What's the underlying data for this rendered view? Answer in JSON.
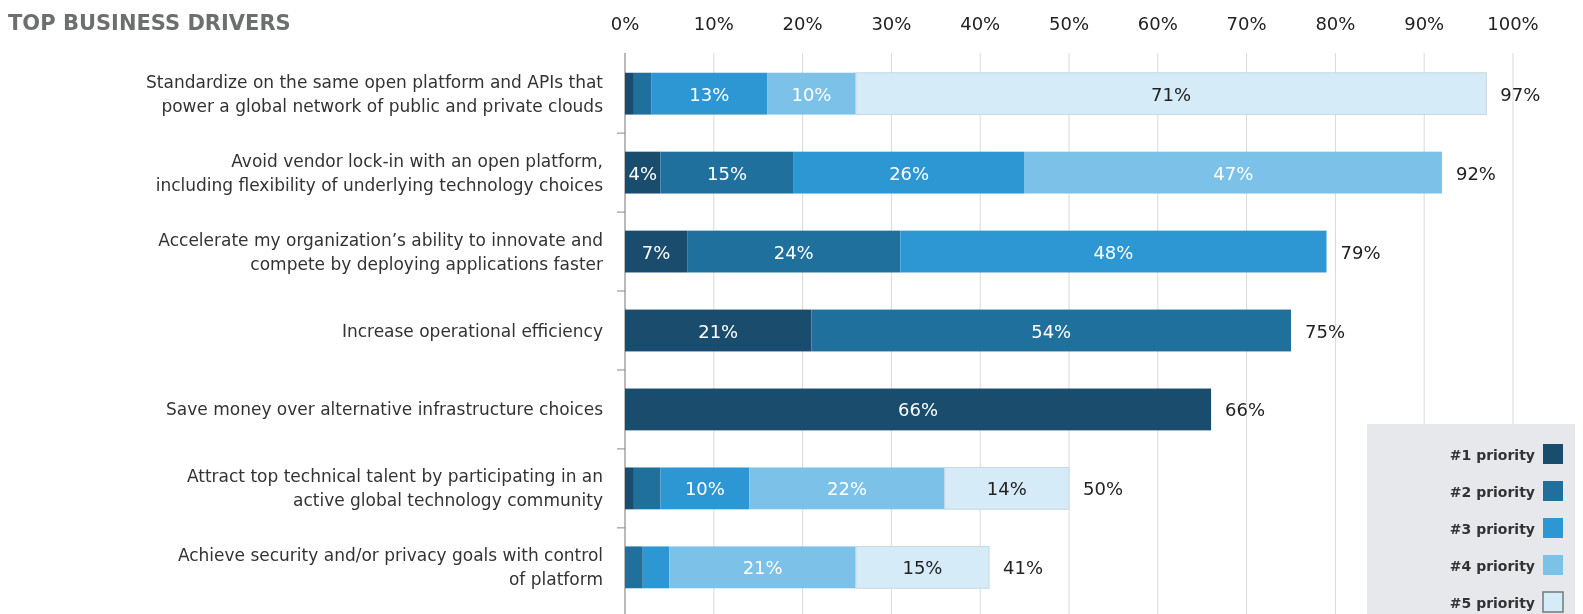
{
  "chart_data": {
    "type": "bar",
    "orientation": "horizontal",
    "stacked": true,
    "title": "TOP BUSINESS DRIVERS",
    "categories": [
      "Standardize on the same open platform and APIs that\npower a global network of public and private clouds",
      "Avoid vendor lock-in with an open platform,\nincluding flexibility of underlying technology choices",
      "Accelerate my organization’s ability to innovate and\ncompete by deploying applications faster",
      "Increase operational efficiency",
      "Save money over alternative infrastructure choices",
      "Attract top technical talent by participating in an\nactive global technology community",
      "Achieve security and/or privacy goals with control\nof platform"
    ],
    "series": [
      {
        "name": "#1 priority",
        "color": "#1a4d6d",
        "values": [
          1,
          4,
          7,
          21,
          66,
          1,
          null
        ],
        "value_labels": [
          null,
          "4%",
          "7%",
          "21%",
          "66%",
          null,
          null
        ]
      },
      {
        "name": "#2 priority",
        "color": "#20709e",
        "values": [
          2,
          15,
          24,
          54,
          null,
          3,
          2
        ],
        "value_labels": [
          null,
          "15%",
          "24%",
          "54%",
          null,
          null,
          null
        ]
      },
      {
        "name": "#3 priority",
        "color": "#2d97d3",
        "values": [
          13,
          26,
          48,
          null,
          null,
          10,
          3
        ],
        "value_labels": [
          "13%",
          "26%",
          "48%",
          null,
          null,
          "10%",
          null
        ]
      },
      {
        "name": "#4 priority",
        "color": "#7cc2e8",
        "values": [
          10,
          47,
          null,
          null,
          null,
          22,
          21
        ],
        "value_labels": [
          "10%",
          "47%",
          null,
          null,
          null,
          "22%",
          "21%"
        ]
      },
      {
        "name": "#5 priority",
        "color": "#d5ebf7",
        "values": [
          71,
          null,
          null,
          null,
          null,
          14,
          15
        ],
        "value_labels": [
          "71%",
          null,
          null,
          null,
          null,
          "14%",
          "15%"
        ]
      }
    ],
    "totals": [
      "97%",
      "92%",
      "79%",
      "75%",
      "66%",
      "50%",
      "41%"
    ],
    "xlim": [
      0,
      100
    ],
    "xticks": [
      {
        "value": 0,
        "label": "0%"
      },
      {
        "value": 10,
        "label": "10%"
      },
      {
        "value": 20,
        "label": "20%"
      },
      {
        "value": 30,
        "label": "30%"
      },
      {
        "value": 40,
        "label": "40%"
      },
      {
        "value": 50,
        "label": "50%"
      },
      {
        "value": 60,
        "label": "60%"
      },
      {
        "value": 70,
        "label": "70%"
      },
      {
        "value": 80,
        "label": "80%"
      },
      {
        "value": 90,
        "label": "90%"
      },
      {
        "value": 100,
        "label": "100%"
      }
    ],
    "grid": "x",
    "legend": "bottom right"
  }
}
